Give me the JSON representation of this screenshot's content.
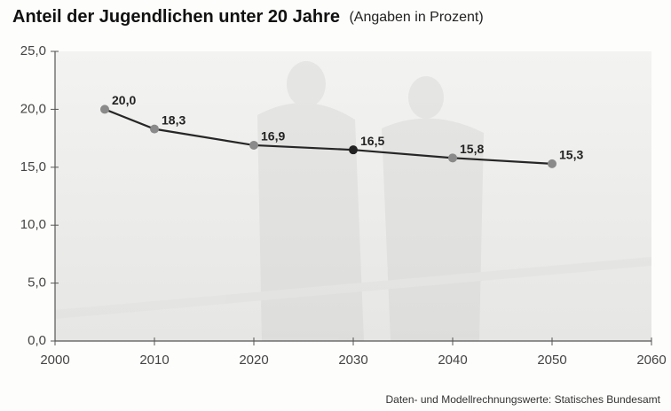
{
  "chart_data": {
    "type": "line",
    "title": "Anteil der Jugendlichen unter 20 Jahre",
    "subtitle": "(Angaben in Prozent)",
    "source": "Daten- und Modellrechnungswerte: Statisches Bundesamt",
    "x": [
      2005,
      2010,
      2020,
      2030,
      2040,
      2050
    ],
    "series": [
      {
        "name": "Anteil der Jugendlichen unter 20 Jahre",
        "color": "#262626",
        "marker_colors": [
          "#8a8a8a",
          "#8a8a8a",
          "#8a8a8a",
          "#222222",
          "#8a8a8a",
          "#8a8a8a"
        ],
        "values": [
          20.0,
          18.3,
          16.9,
          16.5,
          15.8,
          15.3
        ],
        "value_labels": [
          "20,0",
          "18,3",
          "16,9",
          "16,5",
          "15,8",
          "15,3"
        ]
      }
    ],
    "xlim": [
      2000,
      2060
    ],
    "xticks": [
      2000,
      2010,
      2020,
      2030,
      2040,
      2050,
      2060
    ],
    "ylim": [
      0,
      25
    ],
    "yticks": [
      {
        "value": 0,
        "label": "0,0"
      },
      {
        "value": 5,
        "label": "5,0"
      },
      {
        "value": 10,
        "label": "10,0"
      },
      {
        "value": 15,
        "label": "15,0"
      },
      {
        "value": 20,
        "label": "20,0"
      },
      {
        "value": 25,
        "label": "25,0"
      }
    ],
    "plot_background": "#eeeeec"
  }
}
